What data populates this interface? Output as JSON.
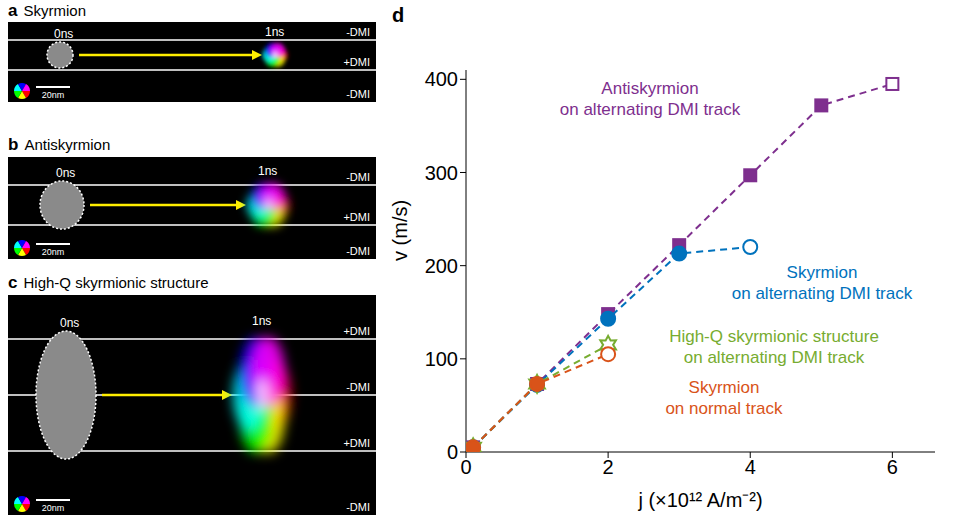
{
  "panels": [
    {
      "letter": "a",
      "title": "Skyrmion",
      "start": "0ns",
      "end": "1ns",
      "scale_bar": "20nm",
      "stripes": [
        "-DMI",
        "+DMI",
        "-DMI"
      ]
    },
    {
      "letter": "b",
      "title": "Antiskyrmion",
      "start": "0ns",
      "end": "1ns",
      "scale_bar": "20nm",
      "stripes": [
        "-DMI",
        "+DMI",
        "-DMI"
      ]
    },
    {
      "letter": "c",
      "title": "High-Q skyrmionic structure",
      "start": "0ns",
      "end": "1ns",
      "scale_bar": "20nm",
      "stripes": [
        "+DMI",
        "-DMI",
        "+DMI",
        "-DMI"
      ]
    }
  ],
  "chart_data": {
    "letter": "d",
    "type": "line",
    "x_label": "j (×10¹² A/m⁻²)",
    "y_label": "v (m/s)",
    "xlim": [
      0,
      6.6
    ],
    "ylim": [
      0,
      410
    ],
    "xticks": [
      0,
      2,
      4,
      6
    ],
    "yticks": [
      0,
      100,
      200,
      300,
      400
    ],
    "grid": false,
    "line_style": "dashed",
    "series": [
      {
        "name": "Antiskyrmion on alternating DMI track",
        "color": "#7E2F8E",
        "marker": "square",
        "x": [
          0.1,
          1,
          2,
          3,
          4,
          5,
          6
        ],
        "values": [
          5,
          73,
          148,
          222,
          297,
          372,
          395
        ],
        "open_markers": [
          false,
          false,
          false,
          false,
          false,
          false,
          true
        ]
      },
      {
        "name": "Skyrmion on alternating DMI track",
        "color": "#0072BD",
        "marker": "circle",
        "x": [
          0.1,
          1,
          2,
          3,
          4
        ],
        "values": [
          5,
          72,
          143,
          213,
          220
        ],
        "open_markers": [
          false,
          false,
          false,
          false,
          true
        ]
      },
      {
        "name": "High-Q skyrmionic structure on alternating DMI track",
        "color": "#77AC30",
        "marker": "star",
        "x": [
          0.1,
          1,
          2
        ],
        "values": [
          5,
          73,
          115
        ],
        "open_markers": [
          false,
          false,
          true
        ]
      },
      {
        "name": "Skyrmion on normal track",
        "color": "#D95319",
        "marker": "circle",
        "x": [
          0.1,
          1,
          2
        ],
        "values": [
          5,
          73,
          105
        ],
        "open_markers": [
          false,
          false,
          true
        ]
      }
    ]
  }
}
